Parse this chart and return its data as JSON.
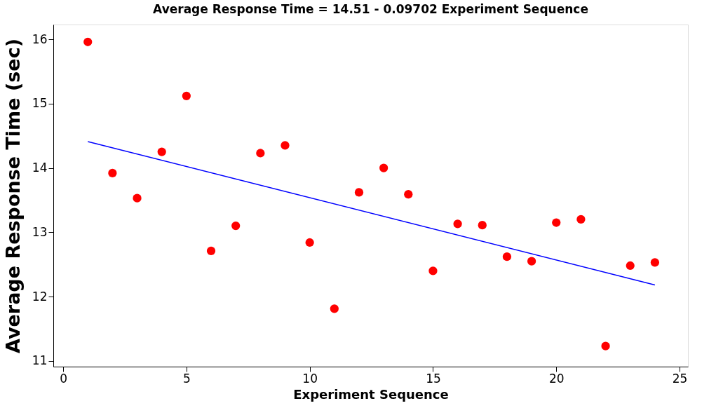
{
  "chart_data": {
    "type": "scatter",
    "title": "Average Response Time  =  14.51 - 0.09702 Experiment Sequence",
    "xlabel": "Experiment Sequence",
    "ylabel": "Average Response Time (sec)",
    "xlim": [
      -0.4,
      25.34
    ],
    "xticks": [
      0,
      5,
      10,
      15,
      20,
      25
    ],
    "ylim": [
      10.91,
      16.23
    ],
    "yticks": [
      11,
      12,
      13,
      14,
      15,
      16
    ],
    "grid": false,
    "series": [
      {
        "marker": "circle",
        "color": "#ff0000",
        "x": [
          1,
          2,
          3,
          4,
          5,
          6,
          7,
          8,
          9,
          10,
          11,
          12,
          13,
          14,
          15,
          16,
          17,
          18,
          19,
          20,
          21,
          22,
          23,
          24
        ],
        "values": [
          15.96,
          13.92,
          13.53,
          14.25,
          15.12,
          12.71,
          13.1,
          14.23,
          14.35,
          12.84,
          11.81,
          13.62,
          14.0,
          13.59,
          12.4,
          13.13,
          13.11,
          12.62,
          12.55,
          13.15,
          13.2,
          11.23,
          12.48,
          12.53
        ]
      },
      {
        "type": "line",
        "color": "#0000ff",
        "line_style": "solid",
        "x": [
          1,
          24
        ],
        "values": [
          14.41,
          12.18
        ]
      }
    ]
  }
}
